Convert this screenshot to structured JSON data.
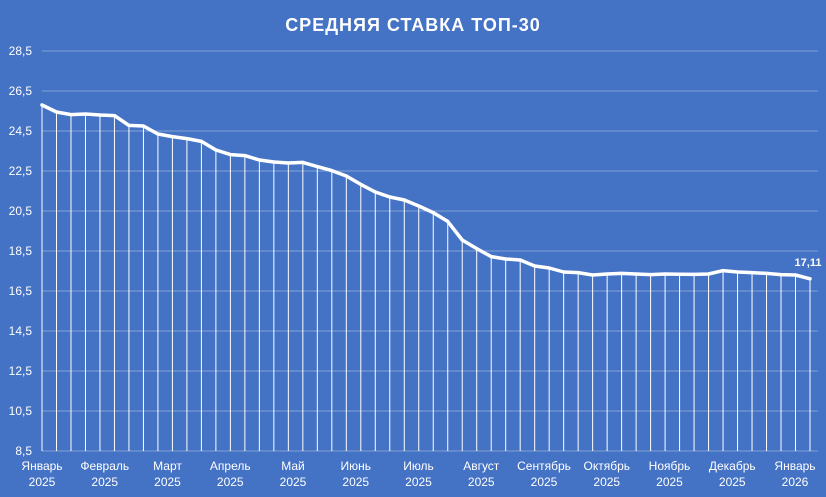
{
  "chart_data": {
    "type": "line",
    "title": "СРЕДНЯЯ СТАВКА ТОП-30",
    "ylim": [
      8.5,
      28.5
    ],
    "yticks": [
      "8,5",
      "10,5",
      "12,5",
      "14,5",
      "16,5",
      "18,5",
      "20,5",
      "22,5",
      "24,5",
      "26,5",
      "28,5"
    ],
    "grid": true,
    "drop_lines": true,
    "color": "#ffffff",
    "background": "#4472c4",
    "month_labels": [
      {
        "month": "Январь",
        "year": "2025"
      },
      {
        "month": "Февраль",
        "year": "2025"
      },
      {
        "month": "Март",
        "year": "2025"
      },
      {
        "month": "Апрель",
        "year": "2025"
      },
      {
        "month": "Май",
        "year": "2025"
      },
      {
        "month": "Июнь",
        "year": "2025"
      },
      {
        "month": "Июль",
        "year": "2025"
      },
      {
        "month": "Август",
        "year": "2025"
      },
      {
        "month": "Сентябрь",
        "year": "2025"
      },
      {
        "month": "Октябрь",
        "year": "2025"
      },
      {
        "month": "Ноябрь",
        "year": "2025"
      },
      {
        "month": "Декабрь",
        "year": "2025"
      },
      {
        "month": "Январь",
        "year": "2026"
      }
    ],
    "values": [
      25.8,
      25.45,
      25.32,
      25.35,
      25.3,
      25.27,
      24.78,
      24.75,
      24.35,
      24.22,
      24.12,
      23.98,
      23.55,
      23.32,
      23.27,
      23.05,
      22.95,
      22.9,
      22.93,
      22.72,
      22.52,
      22.25,
      21.83,
      21.45,
      21.2,
      21.05,
      20.75,
      20.42,
      19.98,
      19.05,
      18.62,
      18.22,
      18.1,
      18.05,
      17.75,
      17.65,
      17.45,
      17.42,
      17.3,
      17.35,
      17.38,
      17.35,
      17.32,
      17.35,
      17.34,
      17.33,
      17.35,
      17.52,
      17.45,
      17.42,
      17.38,
      17.32,
      17.3,
      17.11
    ],
    "last_value_label": "17,11"
  }
}
